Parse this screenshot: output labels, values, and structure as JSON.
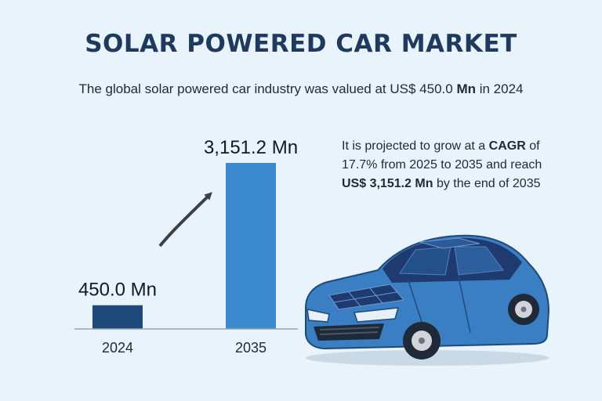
{
  "header": {
    "title": "SOLAR POWERED CAR MARKET",
    "subtitle_pre": "The global solar powered car industry was valued at US$ 450.0 ",
    "subtitle_bold": "Mn",
    "subtitle_post": " in 2024"
  },
  "projection": {
    "p1": "It is projected to grow at a ",
    "b1": "CAGR",
    "p2": " of 17.7% from 2025 to 2035 and reach ",
    "b2": "US$ 3,151.2 Mn",
    "p3": " by the end of 2035"
  },
  "chart_data": {
    "type": "bar",
    "categories": [
      "2024",
      "2035"
    ],
    "values": [
      450.0,
      3151.2
    ],
    "data_labels": [
      "450.0 Mn",
      "3,151.2 Mn"
    ],
    "colors": [
      "#1e4a7a",
      "#3b8ad0"
    ],
    "unit": "Mn",
    "grid": false,
    "legend": "none",
    "ylim": [
      0,
      3151.2
    ],
    "annotation": "growth arrow from 2024 bar to 2035 bar"
  },
  "illustration": {
    "icon": "solar-car-icon",
    "body_color": "#3a7fc4",
    "panel_color": "#1e3a6e"
  }
}
